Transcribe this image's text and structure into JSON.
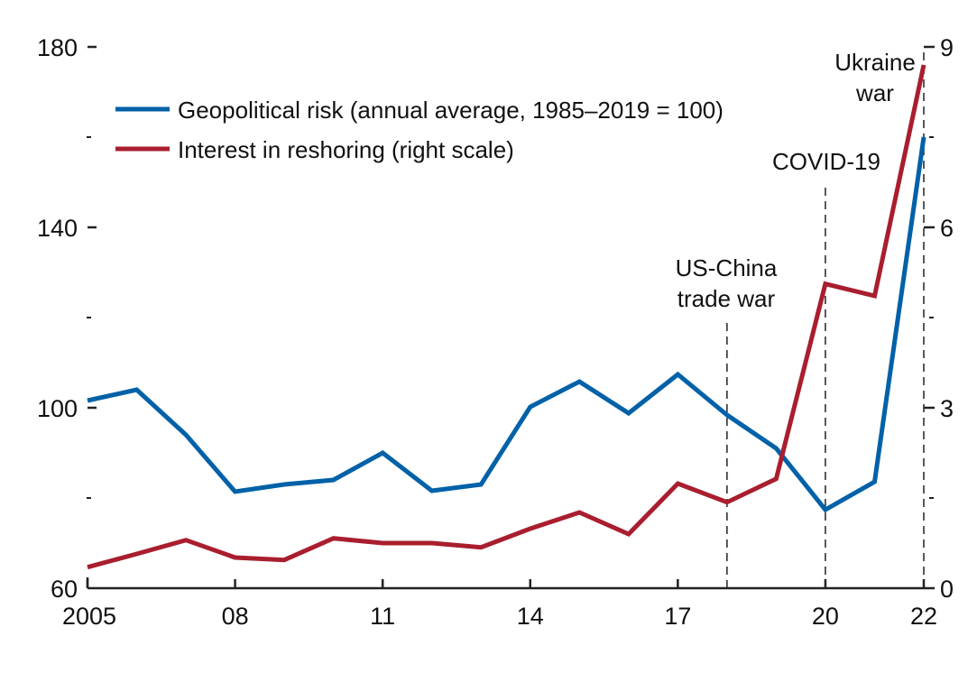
{
  "chart_data": {
    "type": "line",
    "title": "",
    "xlabel": "",
    "ylabel": "",
    "x": [
      2005,
      2006,
      2007,
      2008,
      2009,
      2010,
      2011,
      2012,
      2013,
      2014,
      2015,
      2016,
      2017,
      2018,
      2019,
      2020,
      2021,
      2022
    ],
    "xlim": [
      2005,
      2022
    ],
    "x_ticks": [
      {
        "value": 2005,
        "label": "2005"
      },
      {
        "value": 2008,
        "label": "08"
      },
      {
        "value": 2011,
        "label": "11"
      },
      {
        "value": 2014,
        "label": "14"
      },
      {
        "value": 2017,
        "label": "17"
      },
      {
        "value": 2020,
        "label": "20"
      },
      {
        "value": 2022,
        "label": "22"
      }
    ],
    "y_left": {
      "ylim": [
        60,
        180
      ],
      "major_ticks": [
        {
          "value": 60,
          "label": "60"
        },
        {
          "value": 100,
          "label": "100"
        },
        {
          "value": 140,
          "label": "140"
        },
        {
          "value": 180,
          "label": "180"
        }
      ],
      "minor_ticks": [
        80,
        120,
        160
      ]
    },
    "y_right": {
      "ylim": [
        0,
        9
      ],
      "major_ticks": [
        {
          "value": 0,
          "label": "0"
        },
        {
          "value": 3,
          "label": "3"
        },
        {
          "value": 6,
          "label": "6"
        },
        {
          "value": 9,
          "label": "9"
        }
      ],
      "minor_ticks": [
        1.5,
        4.5,
        7.5
      ]
    },
    "series": [
      {
        "name": "Geopolitical risk (annual average, 1985–2019 = 100)",
        "axis": "left",
        "color": "#0061A8",
        "values": [
          101.6,
          104.0,
          94.0,
          81.4,
          83.0,
          84.0,
          90.0,
          81.6,
          83.0,
          100.2,
          105.8,
          98.8,
          107.4,
          98.4,
          91.0,
          77.4,
          83.6,
          160.0
        ]
      },
      {
        "name": "Interest in reshoring (right scale)",
        "axis": "right",
        "color": "#A91E2E",
        "values": [
          0.35,
          0.57,
          0.8,
          0.51,
          0.47,
          0.83,
          0.75,
          0.75,
          0.68,
          0.99,
          1.26,
          0.9,
          1.74,
          1.43,
          1.82,
          5.06,
          4.86,
          8.7
        ]
      }
    ],
    "legend": {
      "position": "top-left",
      "entries": [
        {
          "label": "Geopolitical risk (annual average, 1985–2019 = 100)",
          "color": "#0061A8"
        },
        {
          "label": "Interest in reshoring (right scale)",
          "color": "#A91E2E"
        }
      ]
    },
    "annotations": [
      {
        "x": 2018,
        "lines": [
          "US-China",
          "trade war"
        ]
      },
      {
        "x": 2020,
        "lines": [
          "COVID-19"
        ]
      },
      {
        "x": 2022,
        "lines": [
          "Ukraine",
          "war"
        ]
      }
    ],
    "grid": false
  }
}
